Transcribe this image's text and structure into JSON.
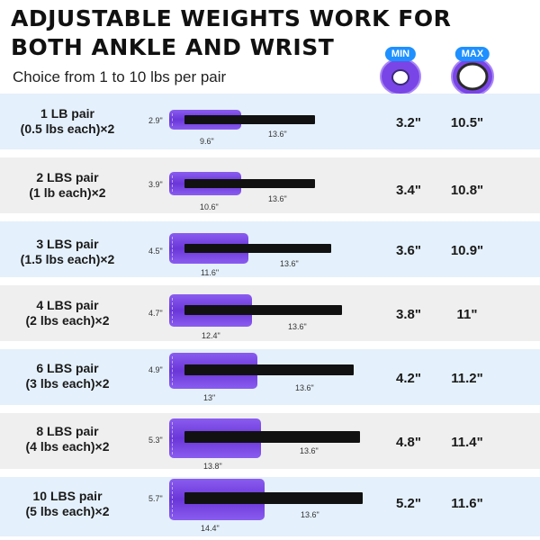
{
  "header": {
    "title_line1": "ADJUSTABLE WEIGHTS WORK FOR",
    "title_line2": "BOTH ANKLE AND WRIST",
    "subtitle": "Choice from 1 to 10 lbs per pair"
  },
  "badges": {
    "min": "MIN",
    "max": "MAX"
  },
  "colors": {
    "badge": "#1e90ff",
    "pad": "#7a45e6",
    "row_blue": "#e4f0fb",
    "row_gray": "#efefef"
  },
  "rows": [
    {
      "line1": "1 LB pair",
      "line2": "(0.5 lbs each)×2",
      "height": "2.9\"",
      "pad_len": "9.6\"",
      "strap_len": "13.6\"",
      "min": "3.2\"",
      "max": "10.5\""
    },
    {
      "line1": "2 LBS pair",
      "line2": "(1 lb each)×2",
      "height": "3.9\"",
      "pad_len": "10.6\"",
      "strap_len": "13.6\"",
      "min": "3.4\"",
      "max": "10.8\""
    },
    {
      "line1": "3 LBS pair",
      "line2": "(1.5 lbs each)×2",
      "height": "4.5\"",
      "pad_len": "11.6\"",
      "strap_len": "13.6\"",
      "min": "3.6\"",
      "max": "10.9\""
    },
    {
      "line1": "4 LBS pair",
      "line2": "(2 lbs each)×2",
      "height": "4.7\"",
      "pad_len": "12.4\"",
      "strap_len": "13.6\"",
      "min": "3.8\"",
      "max": "11\""
    },
    {
      "line1": "6 LBS pair",
      "line2": "(3 lbs each)×2",
      "height": "4.9\"",
      "pad_len": "13\"",
      "strap_len": "13.6\"",
      "min": "4.2\"",
      "max": "11.2\""
    },
    {
      "line1": "8 LBS pair",
      "line2": "(4 lbs each)×2",
      "height": "5.3\"",
      "pad_len": "13.8\"",
      "strap_len": "13.6\"",
      "min": "4.8\"",
      "max": "11.4\""
    },
    {
      "line1": "10 LBS pair",
      "line2": "(5 lbs each)×2",
      "height": "5.7\"",
      "pad_len": "14.4\"",
      "strap_len": "13.6\"",
      "min": "5.2\"",
      "max": "11.6\""
    }
  ]
}
